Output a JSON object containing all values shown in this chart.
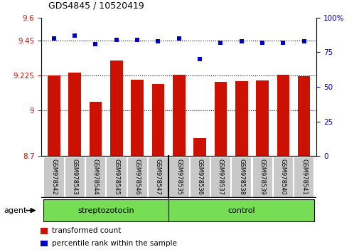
{
  "title": "GDS4845 / 10520419",
  "samples": [
    "GSM978542",
    "GSM978543",
    "GSM978544",
    "GSM978545",
    "GSM978546",
    "GSM978547",
    "GSM978535",
    "GSM978536",
    "GSM978537",
    "GSM978538",
    "GSM978539",
    "GSM978540",
    "GSM978541"
  ],
  "bar_values": [
    9.225,
    9.245,
    9.055,
    9.32,
    9.195,
    9.17,
    9.228,
    8.82,
    9.183,
    9.188,
    9.19,
    9.228,
    9.22
  ],
  "dot_values": [
    85,
    87,
    81,
    84,
    84,
    83,
    85,
    70,
    82,
    83,
    82,
    82,
    83
  ],
  "bar_color": "#cc1100",
  "dot_color": "#0000cc",
  "ylim_left": [
    8.7,
    9.6
  ],
  "ylim_right": [
    0,
    100
  ],
  "yticks_left": [
    8.7,
    9.0,
    9.225,
    9.45,
    9.6
  ],
  "ytick_labels_left": [
    "8.7",
    "9",
    "9.225",
    "9.45",
    "9.6"
  ],
  "yticks_right": [
    0,
    25,
    50,
    75,
    100
  ],
  "ytick_labels_right": [
    "0",
    "25",
    "50",
    "75",
    "100%"
  ],
  "hlines": [
    9.0,
    9.225,
    9.45
  ],
  "group1_label": "streptozotocin",
  "group2_label": "control",
  "group1_count": 6,
  "group2_count": 7,
  "agent_label": "agent",
  "legend1": "transformed count",
  "legend2": "percentile rank within the sample",
  "background_color": "#ffffff",
  "cell_bg": "#c8c8c8",
  "group_bg": "#77dd55",
  "bar_bottom": 8.7
}
